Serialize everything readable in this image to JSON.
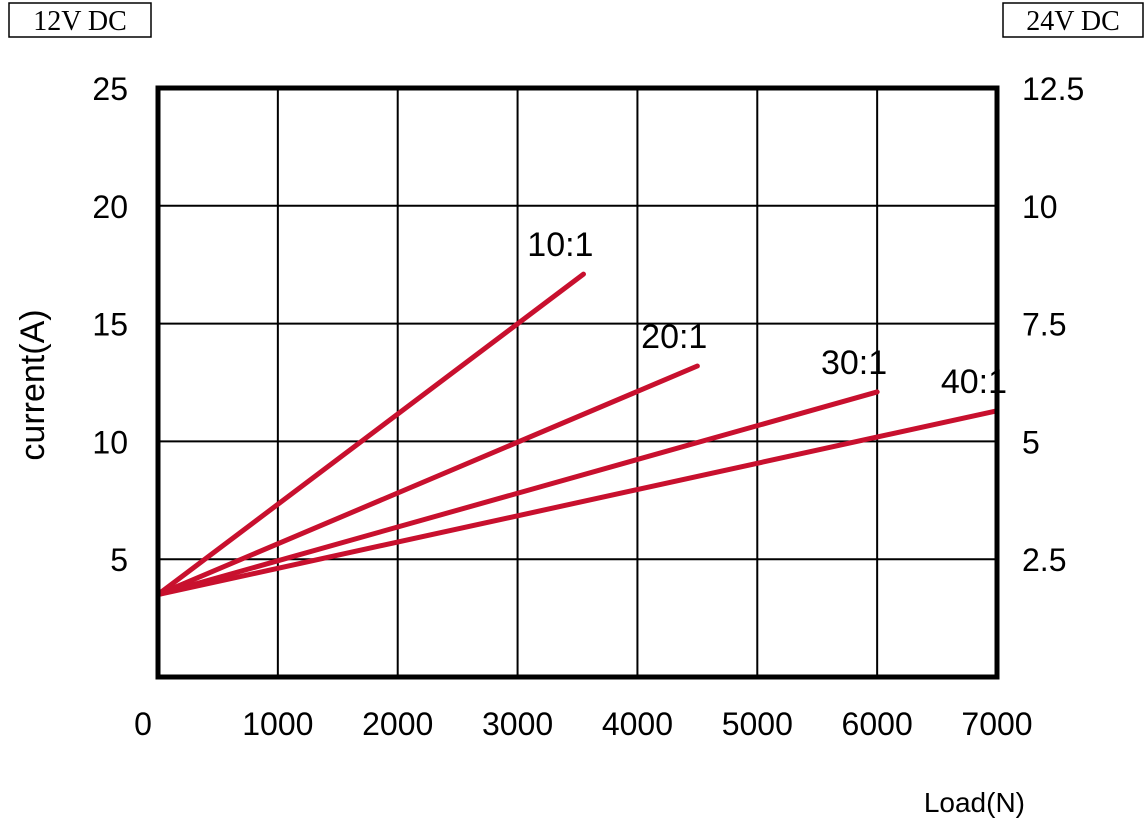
{
  "chart_data": {
    "type": "line",
    "title": "",
    "xlabel": "Load(N)",
    "ylabel": "current(A)",
    "left_axis_label": "12V DC",
    "right_axis_label": "24V DC",
    "xlim": [
      0,
      7000
    ],
    "ylim": [
      0,
      25
    ],
    "y2lim": [
      0,
      12.5
    ],
    "x_ticks": [
      "0",
      "1000",
      "2000",
      "3000",
      "4000",
      "5000",
      "6000",
      "7000"
    ],
    "y_ticks": [
      "5",
      "10",
      "15",
      "20",
      "25"
    ],
    "y2_ticks": [
      "2.5",
      "5",
      "7.5",
      "10",
      "12.5"
    ],
    "grid": true,
    "series": [
      {
        "name": "10:1",
        "x": [
          0,
          3550
        ],
        "y": [
          3.5,
          17.1
        ]
      },
      {
        "name": "20:1",
        "x": [
          0,
          4500
        ],
        "y": [
          3.5,
          13.2
        ]
      },
      {
        "name": "30:1",
        "x": [
          0,
          6000
        ],
        "y": [
          3.5,
          12.1
        ]
      },
      {
        "name": "40:1",
        "x": [
          0,
          7000
        ],
        "y": [
          3.5,
          11.3
        ]
      }
    ],
    "line_color": "#c8102e"
  }
}
